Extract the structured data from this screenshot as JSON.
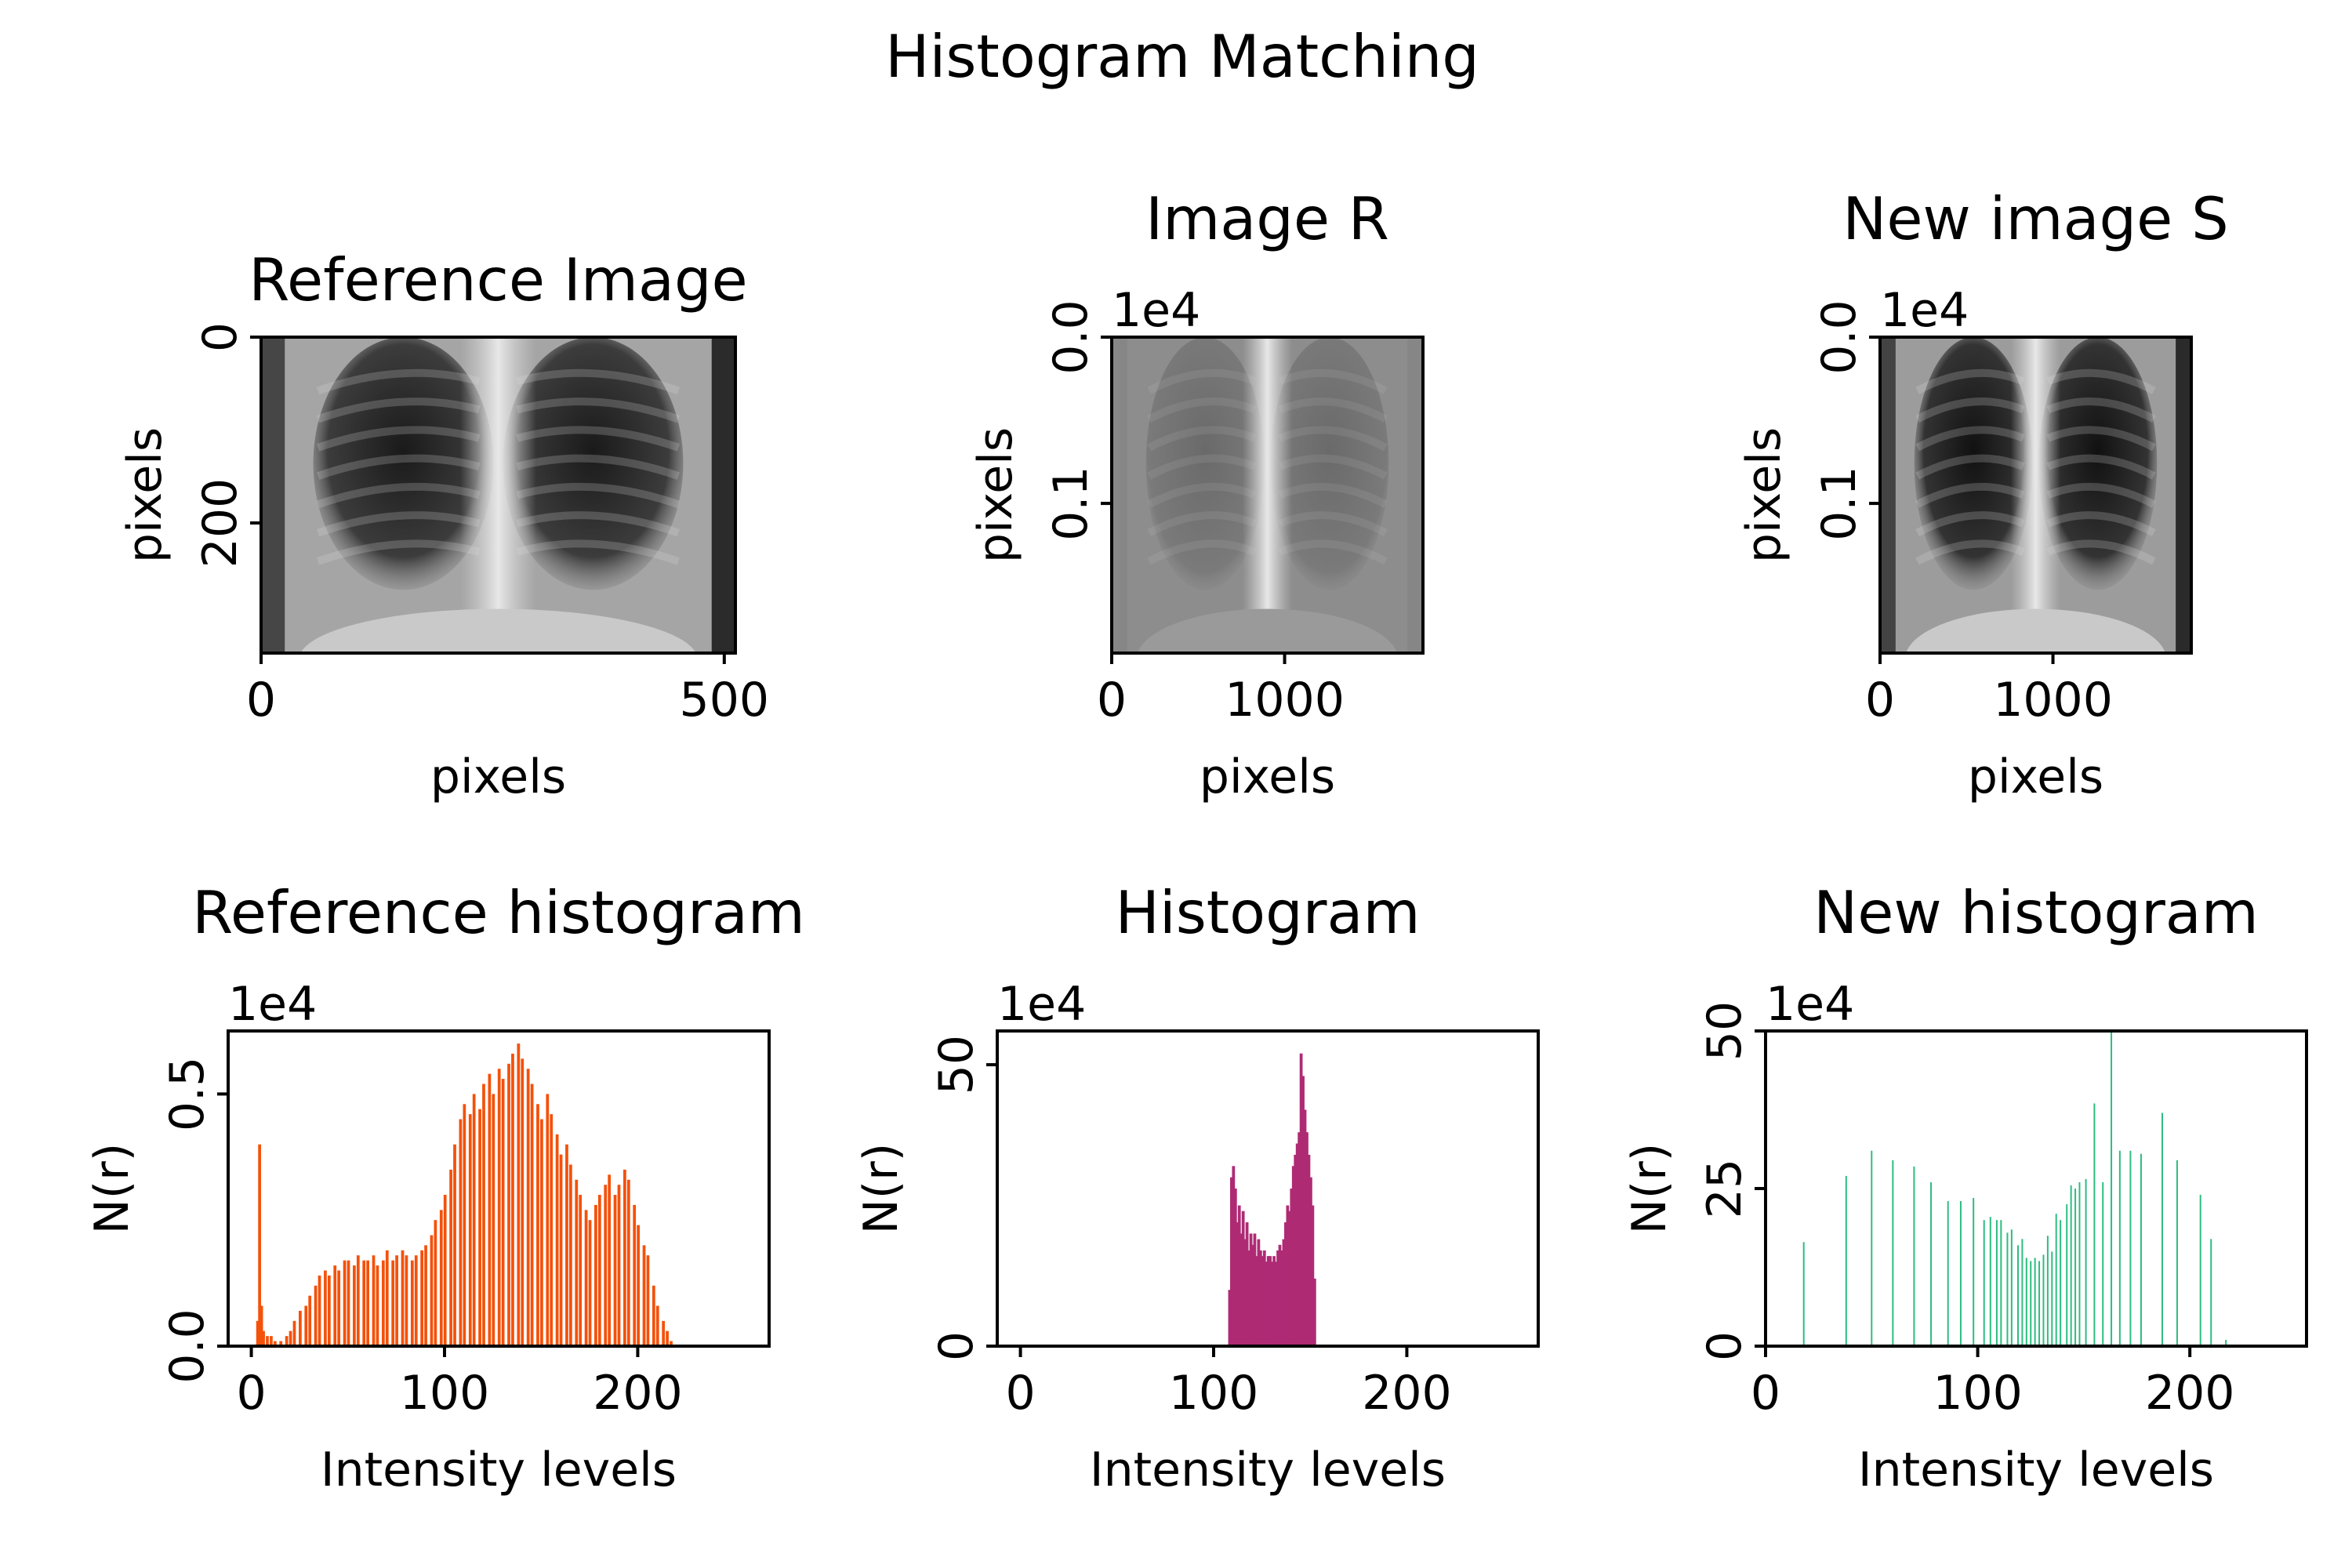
{
  "figure": {
    "suptitle": "Histogram Matching"
  },
  "chart_data": [
    {
      "id": "ref_img",
      "type": "image",
      "title": "Reference Image",
      "xlabel": "pixels",
      "ylabel": "pixels",
      "xlim": [
        0,
        512
      ],
      "ylim": [
        340,
        0
      ],
      "x_ticks": [
        0,
        500
      ],
      "x_tick_labels": [
        "0",
        "500"
      ],
      "y_ticks": [
        0,
        200
      ],
      "y_tick_labels": [
        "0",
        "200"
      ],
      "offset_text": "",
      "tone": "reference"
    },
    {
      "id": "img_r",
      "type": "image",
      "title": "Image R",
      "xlabel": "pixels",
      "ylabel": "pixels",
      "xlim": [
        0,
        1800
      ],
      "ylim": [
        0.19,
        0
      ],
      "x_ticks": [
        0,
        1000
      ],
      "x_tick_labels": [
        "0",
        "1000"
      ],
      "y_ticks": [
        0,
        0.1
      ],
      "y_tick_labels": [
        "0.0",
        "0.1"
      ],
      "offset_text": "1e4",
      "tone": "flat"
    },
    {
      "id": "img_s",
      "type": "image",
      "title": "New image S",
      "xlabel": "pixels",
      "ylabel": "pixels",
      "xlim": [
        0,
        1800
      ],
      "ylim": [
        0.19,
        0
      ],
      "x_ticks": [
        0,
        1000
      ],
      "x_tick_labels": [
        "0",
        "1000"
      ],
      "y_ticks": [
        0,
        0.1
      ],
      "y_tick_labels": [
        "0.0",
        "0.1"
      ],
      "offset_text": "1e4",
      "tone": "contrast"
    },
    {
      "id": "ref_hist",
      "type": "bar",
      "title": "Reference histogram",
      "xlabel": "Intensity levels",
      "ylabel": "N(r)",
      "xlim": [
        -12,
        268
      ],
      "ylim": [
        0,
        0.625
      ],
      "x_ticks": [
        0,
        100,
        200
      ],
      "x_tick_labels": [
        "0",
        "100",
        "200"
      ],
      "y_ticks": [
        0,
        0.5
      ],
      "y_tick_labels": [
        "0.0",
        "0.5"
      ],
      "offset_text": "1e4",
      "color": "#f4510b",
      "points": [
        [
          3,
          0.05
        ],
        [
          4,
          0.4
        ],
        [
          5,
          0.08
        ],
        [
          6,
          0.03
        ],
        [
          8,
          0.02
        ],
        [
          10,
          0.02
        ],
        [
          12,
          0.01
        ],
        [
          15,
          0.01
        ],
        [
          18,
          0.02
        ],
        [
          20,
          0.03
        ],
        [
          22,
          0.05
        ],
        [
          25,
          0.07
        ],
        [
          28,
          0.08
        ],
        [
          30,
          0.1
        ],
        [
          33,
          0.12
        ],
        [
          35,
          0.14
        ],
        [
          38,
          0.15
        ],
        [
          40,
          0.14
        ],
        [
          43,
          0.16
        ],
        [
          45,
          0.15
        ],
        [
          48,
          0.17
        ],
        [
          50,
          0.17
        ],
        [
          53,
          0.16
        ],
        [
          55,
          0.18
        ],
        [
          58,
          0.17
        ],
        [
          60,
          0.17
        ],
        [
          63,
          0.18
        ],
        [
          65,
          0.16
        ],
        [
          68,
          0.17
        ],
        [
          70,
          0.19
        ],
        [
          73,
          0.17
        ],
        [
          75,
          0.18
        ],
        [
          78,
          0.19
        ],
        [
          80,
          0.18
        ],
        [
          83,
          0.17
        ],
        [
          85,
          0.18
        ],
        [
          88,
          0.19
        ],
        [
          90,
          0.2
        ],
        [
          93,
          0.22
        ],
        [
          95,
          0.25
        ],
        [
          98,
          0.27
        ],
        [
          100,
          0.3
        ],
        [
          103,
          0.35
        ],
        [
          105,
          0.4
        ],
        [
          108,
          0.45
        ],
        [
          110,
          0.48
        ],
        [
          113,
          0.46
        ],
        [
          115,
          0.5
        ],
        [
          118,
          0.47
        ],
        [
          120,
          0.52
        ],
        [
          123,
          0.54
        ],
        [
          125,
          0.5
        ],
        [
          128,
          0.55
        ],
        [
          130,
          0.53
        ],
        [
          133,
          0.56
        ],
        [
          135,
          0.58
        ],
        [
          138,
          0.6
        ],
        [
          140,
          0.57
        ],
        [
          143,
          0.55
        ],
        [
          145,
          0.52
        ],
        [
          148,
          0.48
        ],
        [
          150,
          0.45
        ],
        [
          153,
          0.5
        ],
        [
          155,
          0.46
        ],
        [
          158,
          0.42
        ],
        [
          160,
          0.38
        ],
        [
          163,
          0.4
        ],
        [
          165,
          0.36
        ],
        [
          168,
          0.33
        ],
        [
          170,
          0.3
        ],
        [
          173,
          0.27
        ],
        [
          175,
          0.25
        ],
        [
          178,
          0.28
        ],
        [
          180,
          0.3
        ],
        [
          183,
          0.32
        ],
        [
          185,
          0.34
        ],
        [
          188,
          0.3
        ],
        [
          190,
          0.32
        ],
        [
          193,
          0.35
        ],
        [
          195,
          0.33
        ],
        [
          198,
          0.28
        ],
        [
          200,
          0.24
        ],
        [
          203,
          0.2
        ],
        [
          205,
          0.18
        ],
        [
          208,
          0.12
        ],
        [
          210,
          0.08
        ],
        [
          213,
          0.05
        ],
        [
          215,
          0.03
        ],
        [
          217,
          0.01
        ]
      ]
    },
    {
      "id": "hist",
      "type": "bar",
      "title": "Histogram",
      "xlabel": "Intensity levels",
      "ylabel": "N(r)",
      "xlim": [
        -12,
        268
      ],
      "ylim": [
        0,
        56
      ],
      "x_ticks": [
        0,
        100,
        200
      ],
      "x_tick_labels": [
        "0",
        "100",
        "200"
      ],
      "y_ticks": [
        0,
        50
      ],
      "y_tick_labels": [
        "0",
        "50"
      ],
      "offset_text": "1e4",
      "color": "#ae2b74",
      "points": [
        [
          108,
          10
        ],
        [
          109,
          30
        ],
        [
          110,
          32
        ],
        [
          111,
          28
        ],
        [
          112,
          22
        ],
        [
          113,
          25
        ],
        [
          114,
          20
        ],
        [
          115,
          24
        ],
        [
          116,
          19
        ],
        [
          117,
          22
        ],
        [
          118,
          17
        ],
        [
          119,
          20
        ],
        [
          120,
          18
        ],
        [
          121,
          20
        ],
        [
          122,
          16
        ],
        [
          123,
          19
        ],
        [
          124,
          17
        ],
        [
          125,
          16
        ],
        [
          126,
          17
        ],
        [
          127,
          15
        ],
        [
          128,
          16
        ],
        [
          129,
          16
        ],
        [
          130,
          15
        ],
        [
          131,
          16
        ],
        [
          132,
          15
        ],
        [
          133,
          17
        ],
        [
          134,
          18
        ],
        [
          135,
          17
        ],
        [
          136,
          19
        ],
        [
          137,
          22
        ],
        [
          138,
          25
        ],
        [
          139,
          24
        ],
        [
          140,
          28
        ],
        [
          141,
          32
        ],
        [
          142,
          34
        ],
        [
          143,
          36
        ],
        [
          144,
          38
        ],
        [
          145,
          52
        ],
        [
          146,
          48
        ],
        [
          147,
          42
        ],
        [
          148,
          38
        ],
        [
          149,
          34
        ],
        [
          150,
          30
        ],
        [
          151,
          25
        ],
        [
          152,
          12
        ]
      ]
    },
    {
      "id": "new_hist",
      "type": "bar",
      "title": "New histogram",
      "xlabel": "Intensity levels",
      "ylabel": "N(r)",
      "xlim": [
        0,
        255
      ],
      "ylim": [
        0,
        50
      ],
      "x_ticks": [
        0,
        100,
        200
      ],
      "x_tick_labels": [
        "0",
        "100",
        "200"
      ],
      "y_ticks": [
        0,
        25,
        50
      ],
      "y_tick_labels": [
        "0",
        "25",
        "50"
      ],
      "offset_text": "1e4",
      "color": "#2dbd80",
      "points": [
        [
          18,
          16.5
        ],
        [
          38,
          27
        ],
        [
          50,
          31
        ],
        [
          60,
          29.5
        ],
        [
          70,
          28.5
        ],
        [
          78,
          26
        ],
        [
          86,
          23
        ],
        [
          92,
          23
        ],
        [
          98,
          23.5
        ],
        [
          103,
          20
        ],
        [
          106,
          20.5
        ],
        [
          109,
          20
        ],
        [
          111,
          20
        ],
        [
          114,
          18
        ],
        [
          116,
          18.5
        ],
        [
          119,
          16
        ],
        [
          121,
          17
        ],
        [
          123,
          14
        ],
        [
          125,
          13.5
        ],
        [
          127,
          14
        ],
        [
          129,
          13.5
        ],
        [
          131,
          14.5
        ],
        [
          133,
          17.5
        ],
        [
          135,
          15
        ],
        [
          137,
          21
        ],
        [
          139,
          20
        ],
        [
          142,
          22.5
        ],
        [
          144,
          25.5
        ],
        [
          146,
          25
        ],
        [
          148,
          26
        ],
        [
          151,
          26.5
        ],
        [
          155,
          38.5
        ],
        [
          159,
          26
        ],
        [
          163,
          50
        ],
        [
          167,
          31
        ],
        [
          172,
          31
        ],
        [
          177,
          30.5
        ],
        [
          187,
          37
        ],
        [
          194,
          29.5
        ],
        [
          205,
          24
        ],
        [
          210,
          17
        ],
        [
          217,
          1
        ]
      ]
    }
  ]
}
